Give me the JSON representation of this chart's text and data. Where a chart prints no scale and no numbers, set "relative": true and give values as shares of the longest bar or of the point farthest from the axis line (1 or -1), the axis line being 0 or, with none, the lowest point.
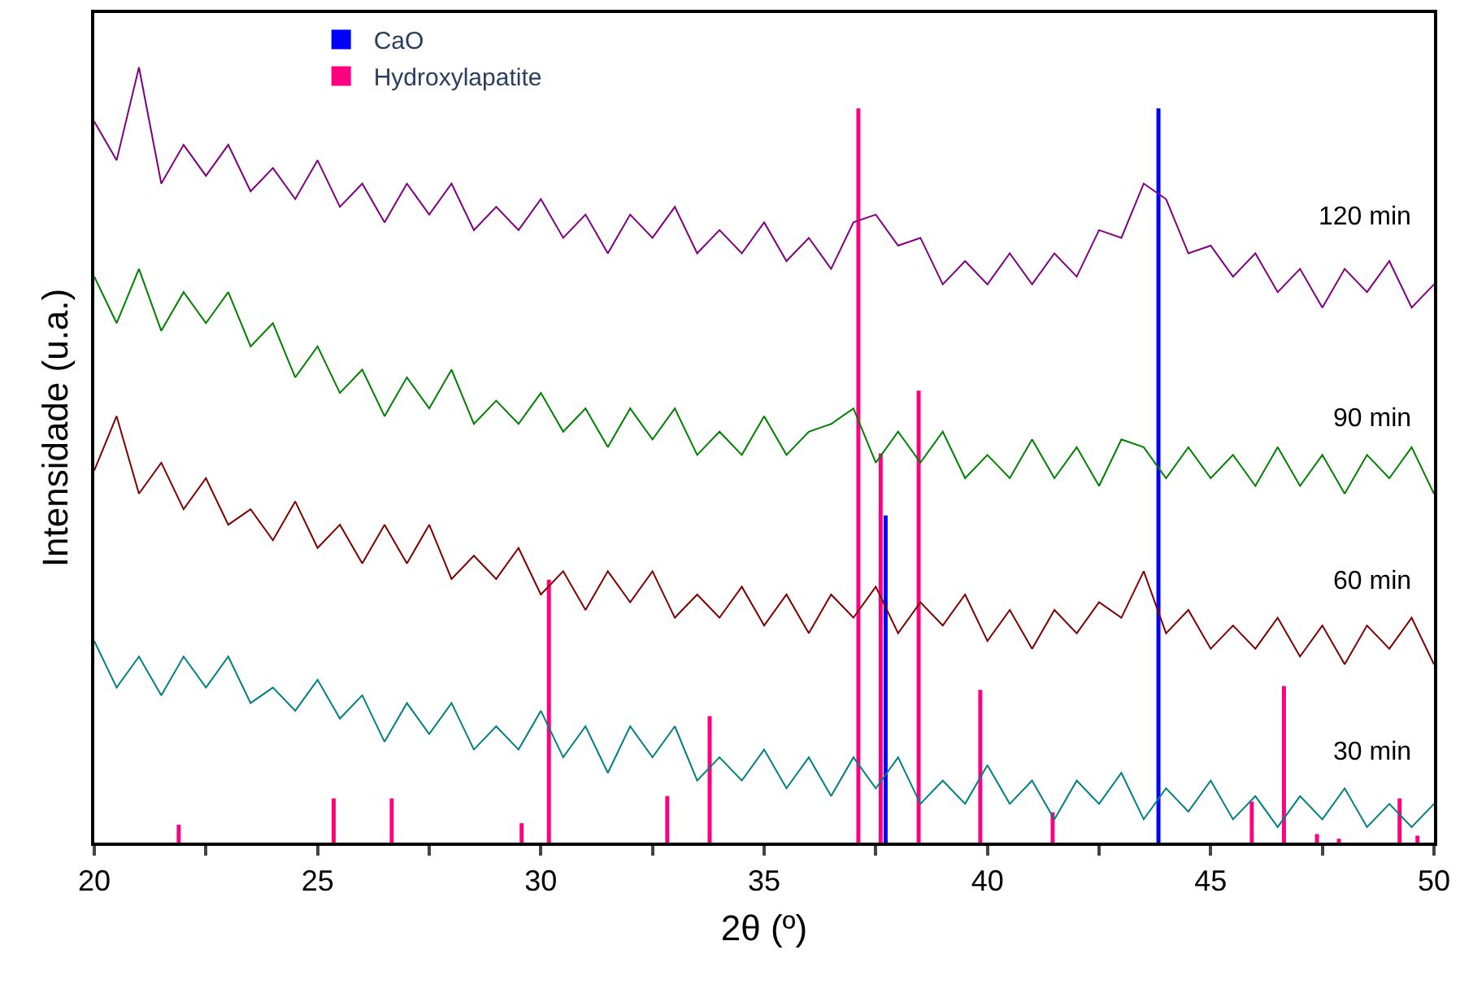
{
  "chart_data": {
    "type": "line",
    "relative": true,
    "xlabel": "2θ (º)",
    "ylabel": "Intensidade (u.a.)",
    "xlim": [
      20,
      50
    ],
    "xticks": [
      20,
      {
        "value": 22.5,
        "label": null
      },
      25,
      {
        "value": 27.5,
        "label": null
      },
      30,
      {
        "value": 32.5,
        "label": null
      },
      35,
      {
        "value": 37.5,
        "label": null
      },
      40,
      {
        "value": 42.5,
        "label": null
      },
      45,
      {
        "value": 47.5,
        "label": null
      },
      50
    ],
    "legend": "top",
    "marker": "none",
    "line_style": "solid",
    "x": [
      20,
      20.5,
      21,
      21.5,
      22,
      22.5,
      23,
      23.5,
      24,
      24.5,
      25,
      25.5,
      26,
      26.5,
      27,
      27.5,
      28,
      28.5,
      29,
      29.5,
      30,
      30.5,
      31,
      31.5,
      32,
      32.5,
      33,
      33.5,
      34,
      34.5,
      35,
      35.5,
      36,
      36.5,
      37,
      37.5,
      38,
      38.5,
      39,
      39.5,
      40,
      40.5,
      41,
      41.5,
      42,
      42.5,
      43,
      43.5,
      44,
      44.5,
      45,
      45.5,
      46,
      46.5,
      47,
      47.5,
      48,
      48.5,
      49,
      49.5,
      50
    ],
    "series": [
      {
        "name": "120 min",
        "color": "#800080",
        "values": [
          0.93,
          0.88,
          1.0,
          0.85,
          0.9,
          0.86,
          0.9,
          0.84,
          0.87,
          0.83,
          0.88,
          0.82,
          0.85,
          0.8,
          0.85,
          0.81,
          0.85,
          0.79,
          0.82,
          0.79,
          0.83,
          0.78,
          0.81,
          0.76,
          0.81,
          0.78,
          0.82,
          0.76,
          0.79,
          0.76,
          0.8,
          0.75,
          0.78,
          0.74,
          0.8,
          0.81,
          0.77,
          0.78,
          0.72,
          0.75,
          0.72,
          0.76,
          0.72,
          0.76,
          0.73,
          0.79,
          0.78,
          0.85,
          0.83,
          0.76,
          0.77,
          0.73,
          0.76,
          0.71,
          0.74,
          0.69,
          0.74,
          0.71,
          0.75,
          0.69,
          0.72
        ]
      },
      {
        "name": "90 min",
        "color": "#008000",
        "values": [
          0.73,
          0.67,
          0.74,
          0.66,
          0.71,
          0.67,
          0.71,
          0.64,
          0.67,
          0.6,
          0.64,
          0.58,
          0.61,
          0.55,
          0.6,
          0.56,
          0.61,
          0.54,
          0.57,
          0.54,
          0.58,
          0.53,
          0.56,
          0.51,
          0.56,
          0.52,
          0.56,
          0.5,
          0.53,
          0.5,
          0.55,
          0.5,
          0.53,
          0.54,
          0.56,
          0.49,
          0.53,
          0.49,
          0.53,
          0.47,
          0.5,
          0.47,
          0.52,
          0.47,
          0.51,
          0.46,
          0.52,
          0.51,
          0.47,
          0.51,
          0.47,
          0.5,
          0.46,
          0.51,
          0.46,
          0.5,
          0.45,
          0.5,
          0.47,
          0.51,
          0.45
        ]
      },
      {
        "name": "60 min",
        "color": "#800000",
        "values": [
          0.48,
          0.55,
          0.45,
          0.49,
          0.43,
          0.47,
          0.41,
          0.43,
          0.39,
          0.44,
          0.38,
          0.41,
          0.36,
          0.41,
          0.36,
          0.41,
          0.34,
          0.37,
          0.34,
          0.38,
          0.32,
          0.35,
          0.3,
          0.35,
          0.31,
          0.35,
          0.29,
          0.32,
          0.29,
          0.33,
          0.28,
          0.32,
          0.27,
          0.32,
          0.29,
          0.33,
          0.27,
          0.31,
          0.28,
          0.32,
          0.26,
          0.3,
          0.25,
          0.3,
          0.27,
          0.31,
          0.29,
          0.35,
          0.27,
          0.3,
          0.25,
          0.28,
          0.25,
          0.29,
          0.24,
          0.28,
          0.23,
          0.28,
          0.25,
          0.29,
          0.23
        ]
      },
      {
        "name": "30 min",
        "color": "#008080",
        "values": [
          0.26,
          0.2,
          0.24,
          0.19,
          0.24,
          0.2,
          0.24,
          0.18,
          0.2,
          0.17,
          0.21,
          0.16,
          0.19,
          0.13,
          0.18,
          0.14,
          0.18,
          0.12,
          0.15,
          0.12,
          0.17,
          0.11,
          0.15,
          0.09,
          0.15,
          0.11,
          0.15,
          0.08,
          0.11,
          0.08,
          0.12,
          0.07,
          0.11,
          0.06,
          0.11,
          0.07,
          0.11,
          0.05,
          0.08,
          0.05,
          0.1,
          0.05,
          0.08,
          0.03,
          0.08,
          0.05,
          0.09,
          0.03,
          0.07,
          0.04,
          0.08,
          0.03,
          0.06,
          0.02,
          0.06,
          0.03,
          0.07,
          0.02,
          0.05,
          0.02,
          0.05
        ]
      },
      {
        "name": "CaO",
        "type": "bar",
        "color": "#0000ff",
        "x": [
          37.72,
          43.83
        ],
        "values": [
          0.422,
          0.947
        ]
      },
      {
        "name": "Hydroxylapatite",
        "type": "bar",
        "color": "#ff0080",
        "x": [
          21.89,
          25.36,
          26.66,
          29.57,
          30.18,
          32.83,
          33.78,
          37.11,
          37.61,
          38.46,
          39.84,
          41.46,
          45.92,
          46.64,
          47.38,
          47.87,
          49.23,
          49.63
        ],
        "values": [
          0.023,
          0.057,
          0.057,
          0.025,
          0.339,
          0.06,
          0.163,
          0.947,
          0.502,
          0.583,
          0.197,
          0.039,
          0.053,
          0.202,
          0.011,
          0.005,
          0.057,
          0.009
        ]
      }
    ]
  }
}
